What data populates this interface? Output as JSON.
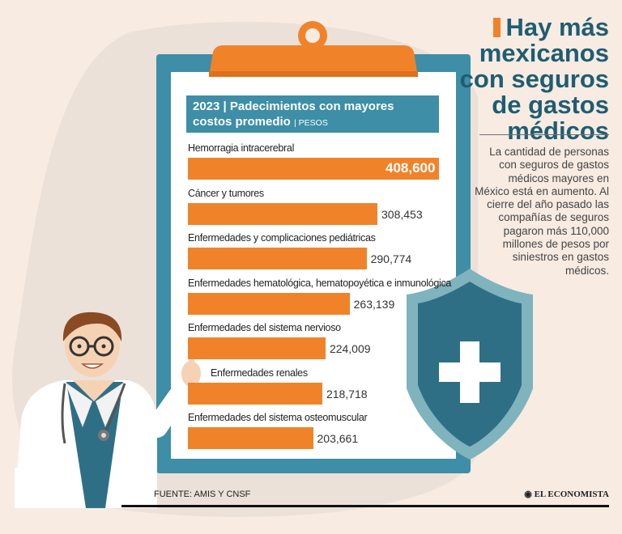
{
  "headline": "Hay más mexicanos con seguros de gastos médicos",
  "intro": "La cantidad de personas con seguros de gastos médicos mayores en México está en aumento. Al cierre del año pasado las compañías de seguros pagaron más 110,000 millones de pesos por siniestros en gastos médicos.",
  "source": "FUENTE: AMIS Y CNSF",
  "brand": "EL ECONOMISTA",
  "colors": {
    "bar": "#f0832a",
    "title_box": "#3d8ea6",
    "headline": "#1f5d73",
    "board": "#3d8ea6",
    "shield": "#7fb3bd"
  },
  "chart_data": {
    "type": "bar",
    "orientation": "horizontal",
    "title": "2023 | Padecimientos con mayores costos promedio",
    "unit": "| PESOS",
    "categories": [
      "Hemorragia intracerebral",
      "Cáncer y tumores",
      "Enfermedades y complicaciones pediátricas",
      "Enfermedades hematológica, hematopoyética e inmunológica",
      "Enfermedades del sistema nervioso",
      "Enfermedades renales",
      "Enfermedades del sistema osteomuscular"
    ],
    "values": [
      408600,
      308453,
      290774,
      263139,
      224009,
      218718,
      203661
    ],
    "labels": [
      "408,600",
      "308,453",
      "290,774",
      "263,139",
      "224,009",
      "218,718",
      "203,661"
    ]
  }
}
